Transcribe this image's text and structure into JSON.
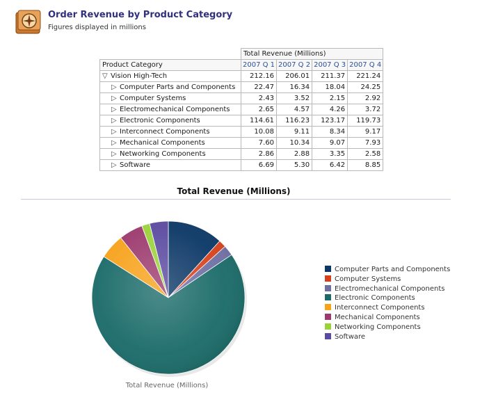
{
  "header": {
    "title": "Order Revenue by Product Category",
    "subtitle": "Figures displayed in millions",
    "icon": "compass-report-icon"
  },
  "pivot_table": {
    "measure_label": "Total Revenue (Millions)",
    "row_header": "Product Category",
    "columns": [
      "2007 Q 1",
      "2007 Q 2",
      "2007 Q 3",
      "2007 Q 4"
    ],
    "parent": {
      "label": "Vision High-Tech",
      "values": [
        "212.16",
        "206.01",
        "211.37",
        "221.24"
      ]
    },
    "rows": [
      {
        "label": "Computer Parts and Components",
        "values": [
          "22.47",
          "16.34",
          "18.04",
          "24.25"
        ]
      },
      {
        "label": "Computer Systems",
        "values": [
          "2.43",
          "3.52",
          "2.15",
          "2.92"
        ]
      },
      {
        "label": "Electromechanical Components",
        "values": [
          "2.65",
          "4.57",
          "4.26",
          "3.72"
        ]
      },
      {
        "label": "Electronic Components",
        "values": [
          "114.61",
          "116.23",
          "123.17",
          "119.73"
        ]
      },
      {
        "label": "Interconnect Components",
        "values": [
          "10.08",
          "9.11",
          "8.34",
          "9.17"
        ]
      },
      {
        "label": "Mechanical Components",
        "values": [
          "7.60",
          "10.34",
          "9.07",
          "7.93"
        ]
      },
      {
        "label": "Networking Components",
        "values": [
          "2.86",
          "2.88",
          "3.35",
          "2.58"
        ]
      },
      {
        "label": "Software",
        "values": [
          "6.69",
          "5.30",
          "6.42",
          "8.85"
        ]
      }
    ]
  },
  "chart_data": {
    "type": "pie",
    "title": "Total Revenue (Millions)",
    "caption": "Total Revenue (Millions)",
    "legend_position": "right",
    "labels": [
      "Computer Parts and Components",
      "Computer Systems",
      "Electromechanical Components",
      "Electronic Components",
      "Interconnect Components",
      "Mechanical Components",
      "Networking Components",
      "Software"
    ],
    "values": [
      81.1,
      11.02,
      15.2,
      473.74,
      36.7,
      34.94,
      11.67,
      27.26
    ],
    "colors": [
      "#0b3766",
      "#d6411c",
      "#6f6fa3",
      "#1a6b69",
      "#f7a21b",
      "#9c3a6e",
      "#9bd23b",
      "#5b4aa1"
    ]
  }
}
